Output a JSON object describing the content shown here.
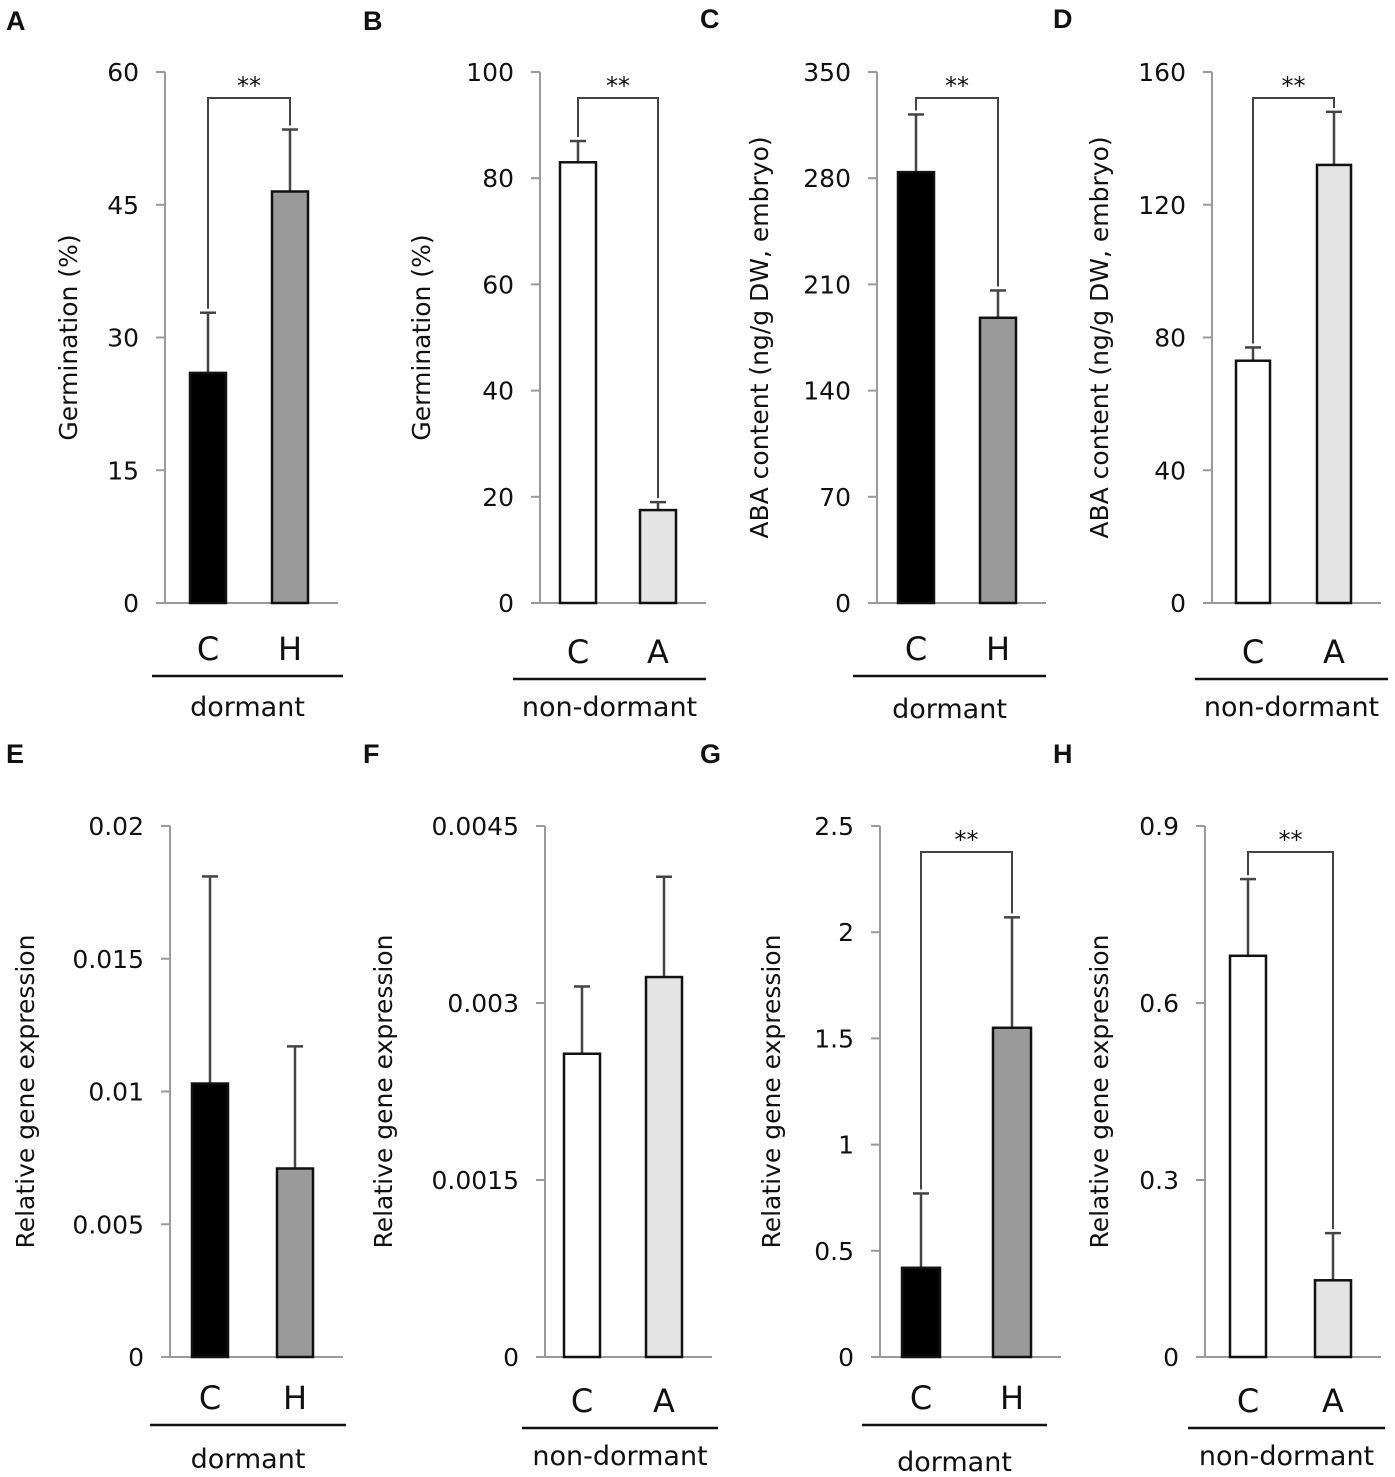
{
  "chart_data": [
    {
      "type": "bar",
      "panel": "A",
      "ylabel": "Germination (%)",
      "categories": [
        "C",
        "H"
      ],
      "values": [
        26,
        46.5
      ],
      "errors": [
        6.8,
        7
      ],
      "colors": [
        "#000000",
        "#9a9a9a"
      ],
      "ylim": [
        0,
        60
      ],
      "ticks": [
        "0",
        "15",
        "30",
        "45",
        "60"
      ],
      "tick_values": [
        0,
        15,
        30,
        45,
        60
      ],
      "group": "dormant",
      "significance": "**"
    },
    {
      "type": "bar",
      "panel": "B",
      "ylabel": "Germination (%)",
      "categories": [
        "C",
        "A"
      ],
      "values": [
        83,
        17.5
      ],
      "errors": [
        4,
        1.5
      ],
      "colors": [
        "#ffffff",
        "#e4e4e4"
      ],
      "ylim": [
        0,
        100
      ],
      "ticks": [
        "0",
        "20",
        "40",
        "60",
        "80",
        "100"
      ],
      "tick_values": [
        0,
        20,
        40,
        60,
        80,
        100
      ],
      "group": "non-dormant",
      "significance": "**"
    },
    {
      "type": "bar",
      "panel": "C",
      "ylabel": "ABA content (ng/g DW, embryo)",
      "categories": [
        "C",
        "H"
      ],
      "values": [
        284,
        188
      ],
      "errors": [
        38,
        18
      ],
      "colors": [
        "#000000",
        "#9a9a9a"
      ],
      "ylim": [
        0,
        350
      ],
      "ticks": [
        "0",
        "70",
        "140",
        "210",
        "280",
        "350"
      ],
      "tick_values": [
        0,
        70,
        140,
        210,
        280,
        350
      ],
      "group": "dormant",
      "significance": "**"
    },
    {
      "type": "bar",
      "panel": "D",
      "ylabel": "ABA content (ng/g DW, embryo)",
      "categories": [
        "C",
        "A"
      ],
      "values": [
        73,
        132
      ],
      "errors": [
        4,
        16
      ],
      "colors": [
        "#ffffff",
        "#e4e4e4"
      ],
      "ylim": [
        0,
        160
      ],
      "ticks": [
        "0",
        "40",
        "80",
        "120",
        "160"
      ],
      "tick_values": [
        0,
        40,
        80,
        120,
        160
      ],
      "group": "non-dormant",
      "significance": "**"
    },
    {
      "type": "bar",
      "panel": "E",
      "ylabel": "Relative gene expression",
      "categories": [
        "C",
        "H"
      ],
      "values": [
        0.0103,
        0.0071
      ],
      "errors": [
        0.0078,
        0.0046
      ],
      "colors": [
        "#000000",
        "#9a9a9a"
      ],
      "ylim": [
        0,
        0.02
      ],
      "ticks": [
        "0",
        "0.005",
        "0.01",
        "0.015",
        "0.02"
      ],
      "tick_values": [
        0,
        0.005,
        0.01,
        0.015,
        0.02
      ],
      "group": "dormant",
      "significance": ""
    },
    {
      "type": "bar",
      "panel": "F",
      "ylabel": "Relative gene expression",
      "categories": [
        "C",
        "A"
      ],
      "values": [
        0.00257,
        0.00322
      ],
      "errors": [
        0.00057,
        0.00085
      ],
      "colors": [
        "#ffffff",
        "#e4e4e4"
      ],
      "ylim": [
        0,
        0.0045
      ],
      "ticks": [
        "0",
        "0.0015",
        "0.003",
        "0.0045"
      ],
      "tick_values": [
        0,
        0.0015,
        0.003,
        0.0045
      ],
      "group": "non-dormant",
      "significance": ""
    },
    {
      "type": "bar",
      "panel": "G",
      "ylabel": "Relative gene expression",
      "categories": [
        "C",
        "H"
      ],
      "values": [
        0.42,
        1.55
      ],
      "errors": [
        0.35,
        0.52
      ],
      "colors": [
        "#000000",
        "#9a9a9a"
      ],
      "ylim": [
        0,
        2.5
      ],
      "ticks": [
        "0",
        "0.5",
        "1",
        "1.5",
        "2",
        "2.5"
      ],
      "tick_values": [
        0,
        0.5,
        1,
        1.5,
        2,
        2.5
      ],
      "group": "dormant",
      "significance": "**"
    },
    {
      "type": "bar",
      "panel": "H",
      "ylabel": "Relative gene expression",
      "categories": [
        "C",
        "A"
      ],
      "values": [
        0.68,
        0.13
      ],
      "errors": [
        0.13,
        0.08
      ],
      "colors": [
        "#ffffff",
        "#e4e4e4"
      ],
      "ylim": [
        0,
        0.9
      ],
      "ticks": [
        "0",
        "0.3",
        "0.6",
        "0.9"
      ],
      "tick_values": [
        0,
        0.3,
        0.6,
        0.9
      ],
      "group": "non-dormant",
      "significance": "**"
    }
  ]
}
